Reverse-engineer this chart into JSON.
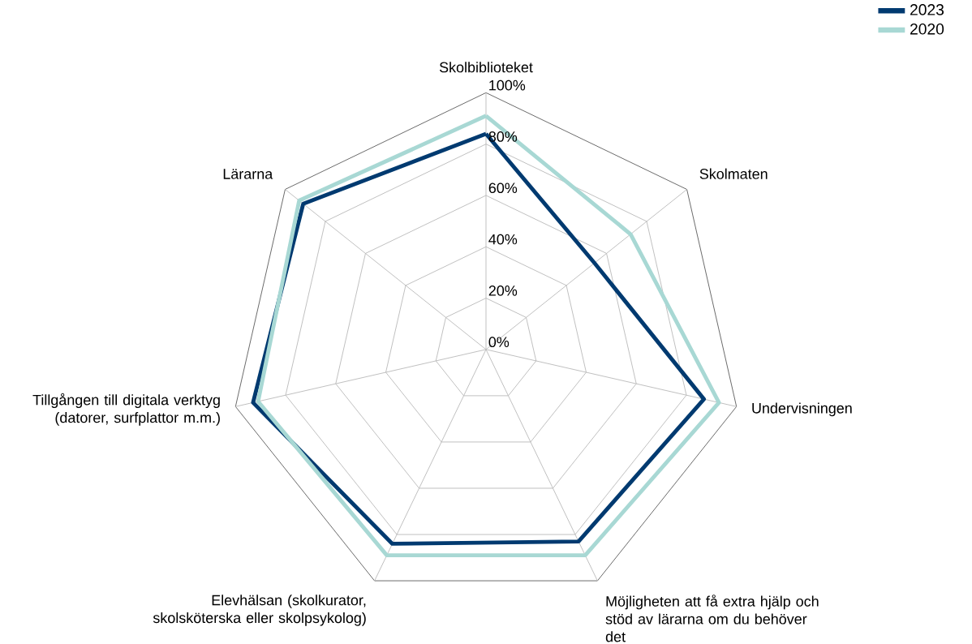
{
  "chart_data": {
    "type": "radar",
    "categories": [
      "Skolbiblioteket",
      "Skolmaten",
      "Undervisningen",
      "Möjligheten att få extra hjälp och stöd av lärarna om du behöver det",
      "Elevhälsan (skolkurator, skolsköterska eller skolpsykolog)",
      "Tillgången till digitala verktyg (datorer, surfplattor m.m.)",
      "Lärarna"
    ],
    "series": [
      {
        "name": "2023",
        "color": "#003a70",
        "values": [
          84,
          54,
          87,
          83,
          84,
          93,
          91
        ]
      },
      {
        "name": "2020",
        "color": "#a8d8d4",
        "values": [
          91,
          72,
          93,
          89,
          89,
          91,
          93
        ]
      }
    ],
    "ylim": [
      0,
      100
    ],
    "yticks": [
      {
        "value": 0,
        "label": "0%"
      },
      {
        "value": 20,
        "label": "20%"
      },
      {
        "value": 40,
        "label": "40%"
      },
      {
        "value": 60,
        "label": "60%"
      },
      {
        "value": 80,
        "label": "80%"
      },
      {
        "value": 100,
        "label": "100%"
      }
    ],
    "grid": true,
    "legend": "top right",
    "marker": "none",
    "line_style": "solid"
  }
}
